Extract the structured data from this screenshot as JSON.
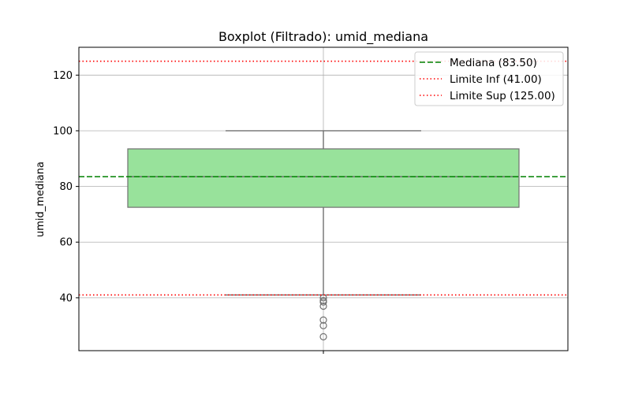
{
  "chart_data": {
    "type": "boxplot",
    "title": "Boxplot (Filtrado): umid_mediana",
    "xlabel": "",
    "ylabel": "umid_mediana",
    "ylim": [
      21,
      130
    ],
    "yticks": [
      40,
      60,
      80,
      100,
      120
    ],
    "grid": true,
    "box": {
      "q1": 72.5,
      "median": 83.5,
      "q3": 93.5,
      "whisker_low": 41.0,
      "whisker_high": 100.0,
      "fill": "#98e29b",
      "edge": "#707070"
    },
    "outliers": [
      40.0,
      39.0,
      38.5,
      37.0,
      32.0,
      30.0,
      26.0
    ],
    "reference_lines": [
      {
        "label": "Mediana (83.50)",
        "value": 83.5,
        "color": "#008000",
        "style": "dashed"
      },
      {
        "label": "Limite Inf (41.00)",
        "value": 41.0,
        "color": "#ff0000",
        "style": "dotted"
      },
      {
        "label": "Limite Sup (125.00)",
        "value": 125.0,
        "color": "#ff0000",
        "style": "dotted"
      }
    ],
    "legend_position": "top-right"
  }
}
